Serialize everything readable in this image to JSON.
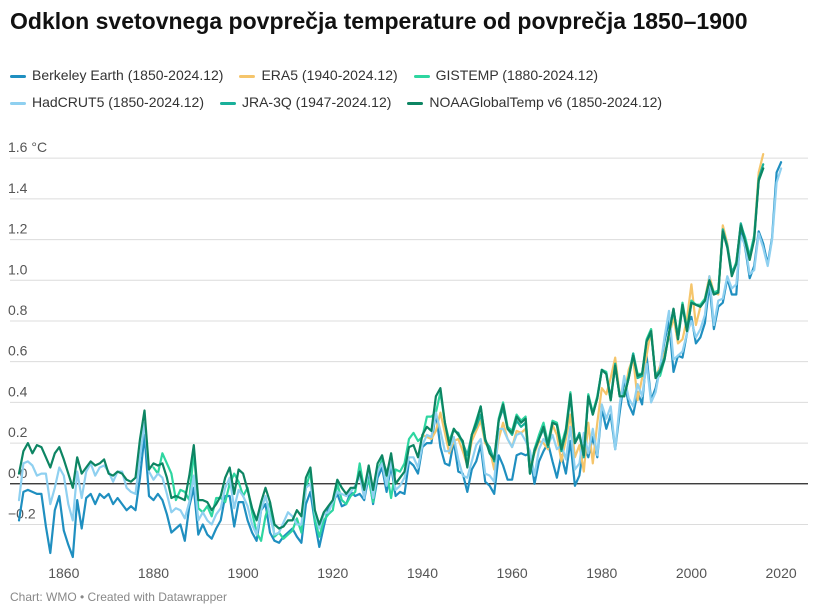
{
  "chart_data": {
    "type": "line",
    "title": "Odklon svetovnega povprečja temperature od povprečja 1850–1900",
    "source": "Chart: WMO • Created with Datawrapper",
    "y_unit": "°C",
    "ylim": [
      -0.35,
      1.65
    ],
    "xlim": [
      1848,
      2026
    ],
    "y_ticks": [
      -0.2,
      0.0,
      0.2,
      0.4,
      0.6,
      0.8,
      1.0,
      1.2,
      1.4,
      1.6
    ],
    "y_tick_labels": [
      "−0.2",
      "0.0",
      "0.2",
      "0.4",
      "0.6",
      "0.8",
      "1.0",
      "1.2",
      "1.4",
      "1.6 °C"
    ],
    "x_ticks": [
      1860,
      1880,
      1900,
      1920,
      1940,
      1960,
      1980,
      2000,
      2020
    ],
    "x_tick_labels": [
      "1860",
      "1880",
      "1900",
      "1920",
      "1940",
      "1960",
      "1980",
      "2000",
      "2020"
    ],
    "grid": true,
    "legend_position": "top",
    "series": [
      {
        "name": "Berkeley Earth (1850-2024.12)",
        "color": "#1f8fc0",
        "start": 1850,
        "values": [
          -0.18,
          -0.04,
          -0.03,
          -0.04,
          -0.05,
          -0.05,
          -0.21,
          -0.34,
          -0.13,
          -0.06,
          -0.23,
          -0.3,
          -0.36,
          -0.08,
          -0.22,
          -0.07,
          -0.05,
          -0.1,
          -0.05,
          -0.07,
          -0.05,
          -0.1,
          -0.07,
          -0.1,
          -0.13,
          -0.11,
          -0.13,
          0.03,
          0.24,
          -0.06,
          -0.08,
          -0.05,
          -0.08,
          -0.15,
          -0.24,
          -0.22,
          -0.2,
          -0.28,
          -0.11,
          -0.02,
          -0.25,
          -0.2,
          -0.25,
          -0.27,
          -0.22,
          -0.18,
          -0.06,
          -0.06,
          -0.21,
          -0.09,
          -0.09,
          -0.18,
          -0.24,
          -0.28,
          -0.13,
          -0.1,
          -0.24,
          -0.28,
          -0.29,
          -0.26,
          -0.24,
          -0.22,
          -0.26,
          -0.29,
          -0.1,
          -0.04,
          -0.19,
          -0.31,
          -0.21,
          -0.12,
          -0.09,
          -0.05,
          -0.11,
          -0.1,
          -0.04,
          -0.06,
          -0.05,
          -0.08,
          0.04,
          -0.1,
          0.03,
          0.08,
          -0.04,
          0.09,
          -0.06,
          -0.04,
          -0.05,
          0.11,
          0.09,
          0.05,
          0.18,
          0.2,
          0.2,
          0.35,
          0.18,
          0.1,
          0.09,
          0.21,
          0.06,
          0.05,
          -0.04,
          0.07,
          0.11,
          0.19,
          0.01,
          -0.01,
          -0.05,
          0.14,
          0.09,
          0.02,
          0.02,
          0.14,
          0.15,
          0.14,
          0.15,
          0.0,
          0.11,
          0.16,
          0.2,
          0.11,
          0.03,
          0.14,
          0.05,
          0.21,
          -0.01,
          0.04,
          0.19,
          0.13,
          0.23,
          0.13,
          0.37,
          0.27,
          0.34,
          0.17,
          0.35,
          0.51,
          0.39,
          0.34,
          0.45,
          0.39,
          0.63,
          0.41,
          0.47,
          0.57,
          0.7,
          0.8,
          0.55,
          0.63,
          0.62,
          0.74,
          0.82,
          0.69,
          0.72,
          0.79,
          0.98,
          0.76,
          0.87,
          0.89,
          1.01,
          0.93,
          0.93,
          1.26,
          1.16,
          1.01,
          1.07,
          1.24,
          1.18,
          1.08,
          1.21,
          1.53,
          1.58
        ]
      },
      {
        "name": "ERA5 (1940-2024.12)",
        "color": "#f5c56b",
        "start": 1940,
        "values": [
          0.24,
          0.23,
          0.22,
          0.26,
          0.35,
          0.25,
          0.15,
          0.21,
          0.22,
          0.16,
          0.09,
          0.21,
          0.26,
          0.31,
          0.2,
          0.17,
          0.07,
          0.22,
          0.3,
          0.22,
          0.18,
          0.26,
          0.25,
          0.27,
          0.08,
          0.15,
          0.21,
          0.2,
          0.17,
          0.29,
          0.24,
          0.11,
          0.22,
          0.34,
          0.13,
          0.19,
          0.06,
          0.3,
          0.1,
          0.3,
          0.47,
          0.44,
          0.52,
          0.62,
          0.44,
          0.43,
          0.56,
          0.62,
          0.41,
          0.52,
          0.63,
          0.76,
          0.52,
          0.58,
          0.64,
          0.72,
          0.82,
          0.69,
          0.71,
          0.81,
          0.98,
          0.78,
          0.87,
          0.91,
          1.02,
          0.94,
          0.93,
          1.27,
          1.18,
          1.03,
          1.09,
          1.27,
          1.2,
          1.1,
          1.22,
          1.53,
          1.62
        ]
      },
      {
        "name": "GISTEMP (1880-2024.12)",
        "color": "#2ed6a0",
        "start": 1880,
        "values": [
          0.08,
          0.05,
          0.15,
          0.1,
          0.05,
          -0.08,
          -0.03,
          -0.04,
          -0.08,
          0.16,
          -0.12,
          -0.14,
          -0.11,
          -0.16,
          -0.07,
          -0.07,
          -0.09,
          0.0,
          0.05,
          0.01,
          -0.06,
          -0.02,
          -0.14,
          -0.24,
          -0.28,
          -0.16,
          -0.09,
          -0.26,
          -0.24,
          -0.27,
          -0.25,
          -0.23,
          -0.17,
          -0.24,
          -0.02,
          0.06,
          -0.18,
          -0.26,
          -0.18,
          -0.15,
          -0.13,
          0.0,
          -0.08,
          -0.1,
          -0.06,
          -0.04,
          0.1,
          -0.03,
          0.02,
          -0.09,
          0.06,
          0.12,
          0.06,
          -0.07,
          0.07,
          0.06,
          0.1,
          0.22,
          0.25,
          0.21,
          0.23,
          0.33,
          0.33,
          0.35,
          0.45,
          0.3,
          0.21,
          0.27,
          0.24,
          0.2,
          0.1,
          0.24,
          0.31,
          0.38,
          0.22,
          0.16,
          0.12,
          0.32,
          0.4,
          0.28,
          0.26,
          0.34,
          0.31,
          0.33,
          0.05,
          0.17,
          0.24,
          0.3,
          0.2,
          0.31,
          0.3,
          0.19,
          0.27,
          0.45,
          0.21,
          0.24,
          0.15,
          0.44,
          0.35,
          0.43,
          0.56,
          0.55,
          0.41,
          0.58,
          0.43,
          0.44,
          0.53,
          0.64,
          0.54,
          0.54,
          0.71,
          0.76,
          0.52,
          0.53,
          0.61,
          0.74,
          0.85,
          0.73,
          0.89,
          0.76,
          0.9,
          0.88,
          0.88,
          0.91,
          1.0,
          0.94,
          0.95,
          1.24,
          1.17,
          1.03,
          1.09,
          1.27,
          1.21,
          1.12,
          1.22,
          1.49,
          1.55
        ]
      },
      {
        "name": "HadCRUT5 (1850-2024.12)",
        "color": "#8fd0f0",
        "start": 1850,
        "values": [
          -0.08,
          0.1,
          0.11,
          0.09,
          0.04,
          0.05,
          0.05,
          -0.1,
          -0.02,
          0.08,
          0.04,
          -0.1,
          -0.18,
          0.06,
          -0.07,
          0.06,
          0.1,
          0.04,
          0.08,
          0.09,
          0.06,
          0.01,
          0.06,
          0.06,
          -0.02,
          -0.04,
          -0.05,
          0.13,
          0.3,
          0.06,
          0.02,
          0.05,
          0.03,
          -0.05,
          -0.14,
          -0.12,
          -0.13,
          -0.17,
          -0.09,
          0.04,
          -0.18,
          -0.14,
          -0.18,
          -0.2,
          -0.15,
          -0.12,
          -0.02,
          0.03,
          -0.12,
          -0.03,
          -0.06,
          -0.11,
          -0.2,
          -0.25,
          -0.13,
          -0.06,
          -0.16,
          -0.25,
          -0.24,
          -0.19,
          -0.14,
          -0.16,
          -0.2,
          -0.2,
          -0.02,
          0.0,
          -0.14,
          -0.22,
          -0.15,
          -0.14,
          -0.09,
          -0.04,
          -0.05,
          -0.06,
          -0.04,
          -0.01,
          0.04,
          -0.07,
          0.08,
          -0.07,
          0.06,
          0.1,
          -0.01,
          0.11,
          -0.03,
          -0.01,
          0.03,
          0.13,
          0.13,
          0.08,
          0.19,
          0.24,
          0.23,
          0.35,
          0.26,
          0.16,
          0.16,
          0.23,
          0.12,
          0.04,
          0.03,
          0.11,
          0.19,
          0.22,
          0.05,
          0.04,
          0.01,
          0.27,
          0.27,
          0.22,
          0.18,
          0.24,
          0.25,
          0.21,
          0.16,
          0.04,
          0.17,
          0.22,
          0.19,
          0.24,
          0.17,
          0.19,
          0.12,
          0.28,
          0.07,
          0.1,
          0.25,
          0.15,
          0.27,
          0.14,
          0.39,
          0.32,
          0.38,
          0.17,
          0.39,
          0.53,
          0.42,
          0.38,
          0.49,
          0.43,
          0.59,
          0.4,
          0.45,
          0.57,
          0.72,
          0.85,
          0.61,
          0.63,
          0.65,
          0.74,
          0.8,
          0.72,
          0.76,
          0.83,
          1.02,
          0.78,
          0.9,
          0.91,
          1.02,
          0.96,
          0.98,
          1.22,
          1.17,
          1.03,
          1.05,
          1.23,
          1.16,
          1.07,
          1.2,
          1.48,
          1.55
        ]
      },
      {
        "name": "JRA-3Q (1947-2024.12)",
        "color": "#19b09a",
        "start": 1947,
        "values": [
          0.26,
          0.25,
          0.2,
          0.14,
          0.24,
          0.28,
          0.34,
          0.21,
          0.18,
          0.11,
          0.31,
          0.37,
          0.27,
          0.24,
          0.31,
          0.28,
          0.3,
          0.05,
          0.17,
          0.22,
          0.27,
          0.18,
          0.3,
          0.29,
          0.16,
          0.25,
          0.43,
          0.2,
          0.25,
          0.13,
          0.43,
          0.34,
          0.42,
          0.56,
          0.54,
          0.42,
          0.59,
          0.43,
          0.43,
          0.52,
          0.64,
          0.52,
          0.53,
          0.7,
          0.74,
          0.53,
          0.56,
          0.62,
          0.74,
          0.86,
          0.71,
          0.87,
          0.75,
          0.89,
          0.88,
          0.87,
          0.9,
          1.0,
          0.93,
          0.94,
          1.25,
          1.17,
          1.04,
          1.08,
          1.28,
          1.2,
          1.11,
          1.21,
          1.5,
          1.57
        ]
      },
      {
        "name": "NOAAGlobalTemp v6 (1850-2024.12)",
        "color": "#0d8563",
        "start": 1850,
        "values": [
          0.05,
          0.16,
          0.2,
          0.15,
          0.19,
          0.18,
          0.13,
          0.08,
          0.15,
          0.18,
          0.12,
          0.05,
          -0.02,
          0.13,
          0.05,
          0.08,
          0.11,
          0.09,
          0.1,
          0.12,
          0.05,
          0.04,
          0.06,
          0.05,
          0.02,
          0.01,
          0.03,
          0.22,
          0.36,
          0.07,
          0.1,
          0.09,
          0.1,
          0.03,
          -0.07,
          -0.06,
          -0.07,
          -0.08,
          0.04,
          0.19,
          -0.08,
          -0.08,
          -0.09,
          -0.13,
          -0.1,
          -0.06,
          0.03,
          0.08,
          -0.05,
          0.07,
          0.05,
          -0.03,
          -0.12,
          -0.18,
          -0.09,
          -0.02,
          -0.09,
          -0.2,
          -0.22,
          -0.21,
          -0.18,
          -0.18,
          -0.13,
          -0.16,
          0.03,
          0.08,
          -0.13,
          -0.2,
          -0.14,
          -0.11,
          -0.08,
          0.02,
          -0.02,
          -0.05,
          -0.02,
          -0.02,
          0.06,
          -0.03,
          0.09,
          -0.03,
          0.1,
          0.14,
          0.04,
          0.15,
          0.0,
          0.03,
          0.06,
          0.18,
          0.19,
          0.13,
          0.24,
          0.28,
          0.26,
          0.43,
          0.47,
          0.3,
          0.19,
          0.27,
          0.24,
          0.21,
          0.08,
          0.24,
          0.3,
          0.38,
          0.22,
          0.15,
          0.12,
          0.31,
          0.39,
          0.27,
          0.25,
          0.33,
          0.3,
          0.32,
          0.05,
          0.16,
          0.22,
          0.28,
          0.19,
          0.3,
          0.29,
          0.17,
          0.26,
          0.44,
          0.2,
          0.24,
          0.14,
          0.43,
          0.34,
          0.42,
          0.56,
          0.54,
          0.41,
          0.58,
          0.43,
          0.43,
          0.52,
          0.63,
          0.53,
          0.54,
          0.7,
          0.75,
          0.52,
          0.55,
          0.61,
          0.74,
          0.86,
          0.71,
          0.88,
          0.75,
          0.89,
          0.88,
          0.87,
          0.9,
          1.0,
          0.93,
          0.94,
          1.24,
          1.16,
          1.02,
          1.08,
          1.27,
          1.19,
          1.1,
          1.2,
          1.49,
          1.55
        ]
      }
    ]
  }
}
